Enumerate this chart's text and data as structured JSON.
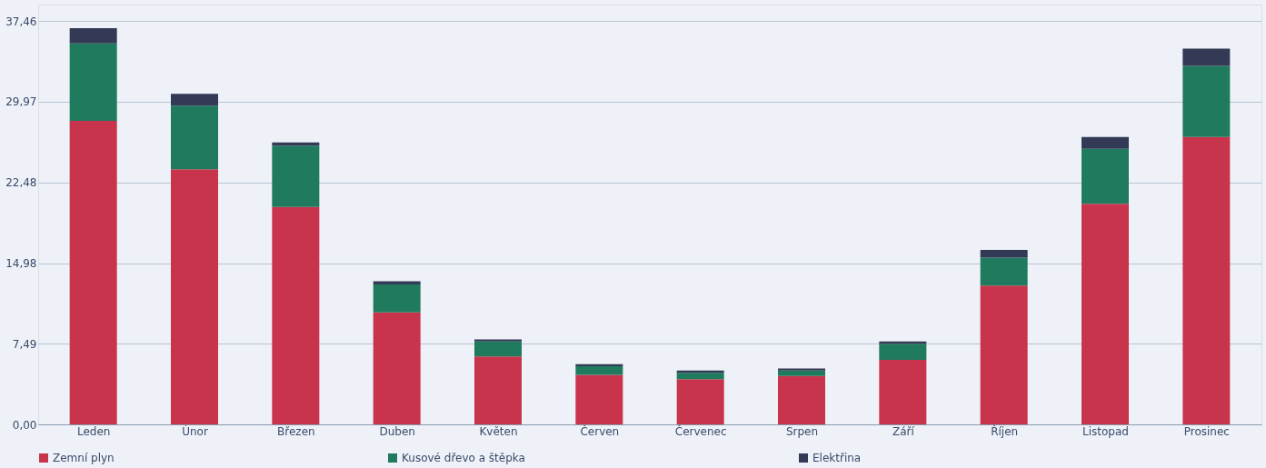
{
  "chart_data": {
    "type": "bar",
    "stacked": true,
    "categories": [
      "Leden",
      "Únor",
      "Březen",
      "Duben",
      "Květen",
      "Červen",
      "Červenec",
      "Srpen",
      "Září",
      "Říjen",
      "Listopad",
      "Prosinec"
    ],
    "series": [
      {
        "name": "Zemní plyn",
        "color": "#c8344c",
        "values": [
          28.2,
          23.7,
          20.2,
          10.4,
          6.3,
          4.6,
          4.2,
          4.5,
          6.0,
          12.9,
          20.5,
          26.7
        ]
      },
      {
        "name": "Kusové dřevo a štěpka",
        "color": "#1f7a5e",
        "values": [
          7.2,
          5.9,
          5.7,
          2.6,
          1.4,
          0.8,
          0.6,
          0.5,
          1.5,
          2.6,
          5.1,
          6.6
        ]
      },
      {
        "name": "Elektřina",
        "color": "#333a55",
        "values": [
          1.4,
          1.1,
          0.3,
          0.3,
          0.2,
          0.2,
          0.2,
          0.2,
          0.2,
          0.7,
          1.1,
          1.6
        ]
      }
    ],
    "ylim": [
      0,
      39
    ],
    "yticks": [
      {
        "value": 0,
        "label": "0,00"
      },
      {
        "value": 7.49,
        "label": "7,49"
      },
      {
        "value": 14.98,
        "label": "14,98"
      },
      {
        "value": 22.48,
        "label": "22,48"
      },
      {
        "value": 29.97,
        "label": "29,97"
      },
      {
        "value": 37.46,
        "label": "37,46"
      }
    ],
    "grid": "y",
    "legend": "bottom"
  }
}
